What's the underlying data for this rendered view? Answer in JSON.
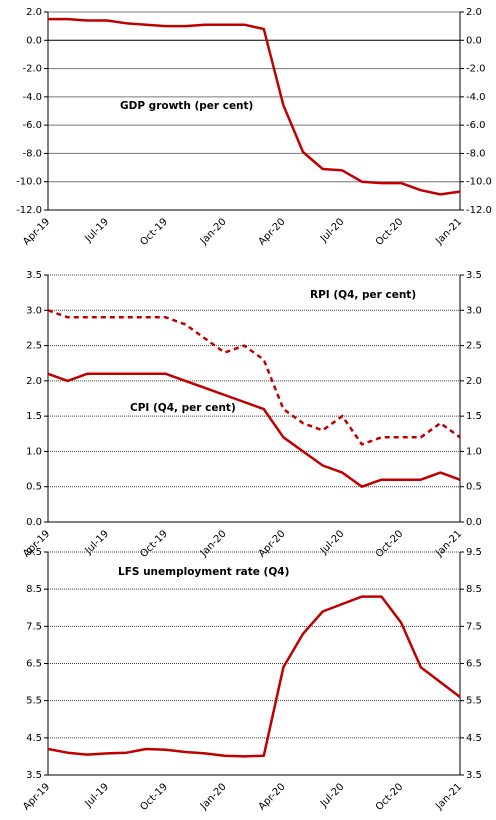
{
  "chart_data": [
    {
      "type": "line",
      "categories": [
        "Apr-19",
        null,
        null,
        "Jul-19",
        null,
        null,
        "Oct-19",
        null,
        null,
        "Jan-20",
        null,
        null,
        "Apr-20",
        null,
        null,
        "Jul-20",
        null,
        null,
        "Oct-20",
        null,
        null,
        "Jan-21"
      ],
      "series": [
        {
          "name": "GDP growth (per cent)",
          "color": "#c00000",
          "dash": "solid",
          "values": [
            1.5,
            1.5,
            1.4,
            1.4,
            1.2,
            1.1,
            1.0,
            1.0,
            1.1,
            1.1,
            1.1,
            0.8,
            -4.6,
            -7.9,
            -9.1,
            -9.2,
            -10.0,
            -10.1,
            -10.1,
            -10.6,
            -10.9,
            -10.7
          ]
        }
      ],
      "ylim": [
        -12,
        2
      ],
      "yticks": [
        {
          "value": 2,
          "label": "2.0"
        },
        {
          "value": 0,
          "label": "0.0"
        },
        {
          "value": -2,
          "label": "-2.0"
        },
        {
          "value": -4,
          "label": "-4.0"
        },
        {
          "value": -6,
          "label": "-6.0"
        },
        {
          "value": -8,
          "label": "-8.0"
        },
        {
          "value": -10,
          "label": "-10.0"
        },
        {
          "value": -12,
          "label": "-12.0"
        }
      ],
      "grid": true,
      "grid_style": "solid"
    },
    {
      "type": "line",
      "categories": [
        "Apr-19",
        null,
        null,
        "Jul-19",
        null,
        null,
        "Oct-19",
        null,
        null,
        "Jan-20",
        null,
        null,
        "Apr-20",
        null,
        null,
        "Jul-20",
        null,
        null,
        "Oct-20",
        null,
        null,
        "Jan-21"
      ],
      "series": [
        {
          "name": "RPI (Q4, per cent)",
          "color": "#c00000",
          "dash": "dashed",
          "values": [
            3.0,
            2.9,
            2.9,
            2.9,
            2.9,
            2.9,
            2.9,
            2.8,
            2.6,
            2.4,
            2.5,
            2.3,
            1.6,
            1.4,
            1.3,
            1.5,
            1.1,
            1.2,
            1.2,
            1.2,
            1.4,
            1.2
          ]
        },
        {
          "name": "CPI (Q4, per cent)",
          "color": "#c00000",
          "dash": "solid",
          "values": [
            2.1,
            2.0,
            2.1,
            2.1,
            2.1,
            2.1,
            2.1,
            2.0,
            1.9,
            1.8,
            1.7,
            1.6,
            1.2,
            1.0,
            0.8,
            0.7,
            0.5,
            0.6,
            0.6,
            0.6,
            0.7,
            0.6
          ]
        }
      ],
      "ylim": [
        0,
        3.5
      ],
      "yticks": [
        3.5,
        {
          "value": 3,
          "label": "3.0"
        },
        2.5,
        {
          "value": 2,
          "label": "2.0"
        },
        1.5,
        {
          "value": 1,
          "label": "1.0"
        },
        0.5,
        {
          "value": 0,
          "label": "0.0"
        }
      ],
      "grid": true,
      "grid_style": "dotted"
    },
    {
      "type": "line",
      "categories": [
        "Apr-19",
        null,
        null,
        "Jul-19",
        null,
        null,
        "Oct-19",
        null,
        null,
        "Jan-20",
        null,
        null,
        "Apr-20",
        null,
        null,
        "Jul-20",
        null,
        null,
        "Oct-20",
        null,
        null,
        "Jan-21"
      ],
      "series": [
        {
          "name": "LFS unemployment rate (Q4)",
          "color": "#c00000",
          "dash": "solid",
          "values": [
            4.2,
            4.1,
            4.05,
            4.08,
            4.1,
            4.2,
            4.18,
            4.12,
            4.08,
            4.02,
            4.0,
            4.02,
            6.4,
            7.3,
            7.9,
            8.1,
            8.3,
            8.3,
            7.6,
            6.4,
            6.0,
            5.6
          ]
        }
      ],
      "ylim": [
        3.5,
        9.5
      ],
      "yticks": [
        9.5,
        8.5,
        7.5,
        6.5,
        5.5,
        4.5,
        3.5
      ],
      "grid": true,
      "grid_style": "dotted"
    }
  ]
}
